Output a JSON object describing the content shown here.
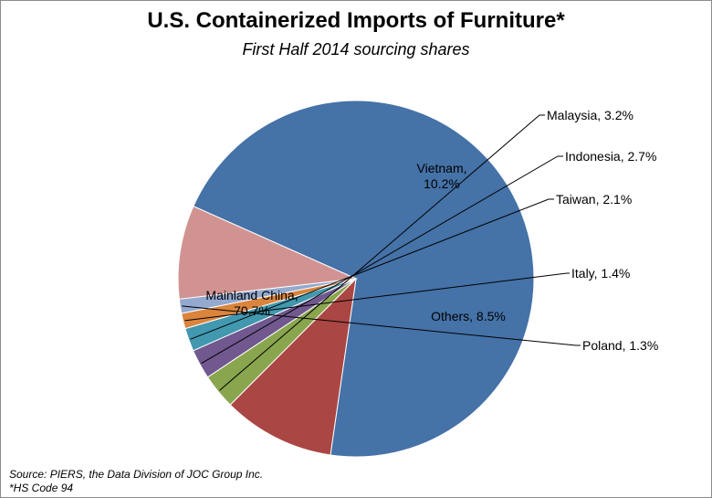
{
  "chart_data": {
    "type": "pie",
    "title": "U.S. Containerized Imports of Furniture*",
    "subtitle": "First Half 2014 sourcing shares",
    "unit": "%",
    "slices": [
      {
        "label": "Mainland China",
        "value": 70.7,
        "color": "#4572A7"
      },
      {
        "label": "Vietnam",
        "value": 10.2,
        "color": "#AA4643"
      },
      {
        "label": "Malaysia",
        "value": 3.2,
        "color": "#89A54E"
      },
      {
        "label": "Indonesia",
        "value": 2.7,
        "color": "#71588F"
      },
      {
        "label": "Taiwan",
        "value": 2.1,
        "color": "#4198AF"
      },
      {
        "label": "Italy",
        "value": 1.4,
        "color": "#DB843D"
      },
      {
        "label": "Poland",
        "value": 1.3,
        "color": "#93A9CF"
      },
      {
        "label": "Others",
        "value": 8.5,
        "color": "#D19392"
      }
    ]
  },
  "footer": {
    "source": "Source: PIERS, the Data Division of JOC Group Inc.",
    "note": "*HS Code 94"
  }
}
